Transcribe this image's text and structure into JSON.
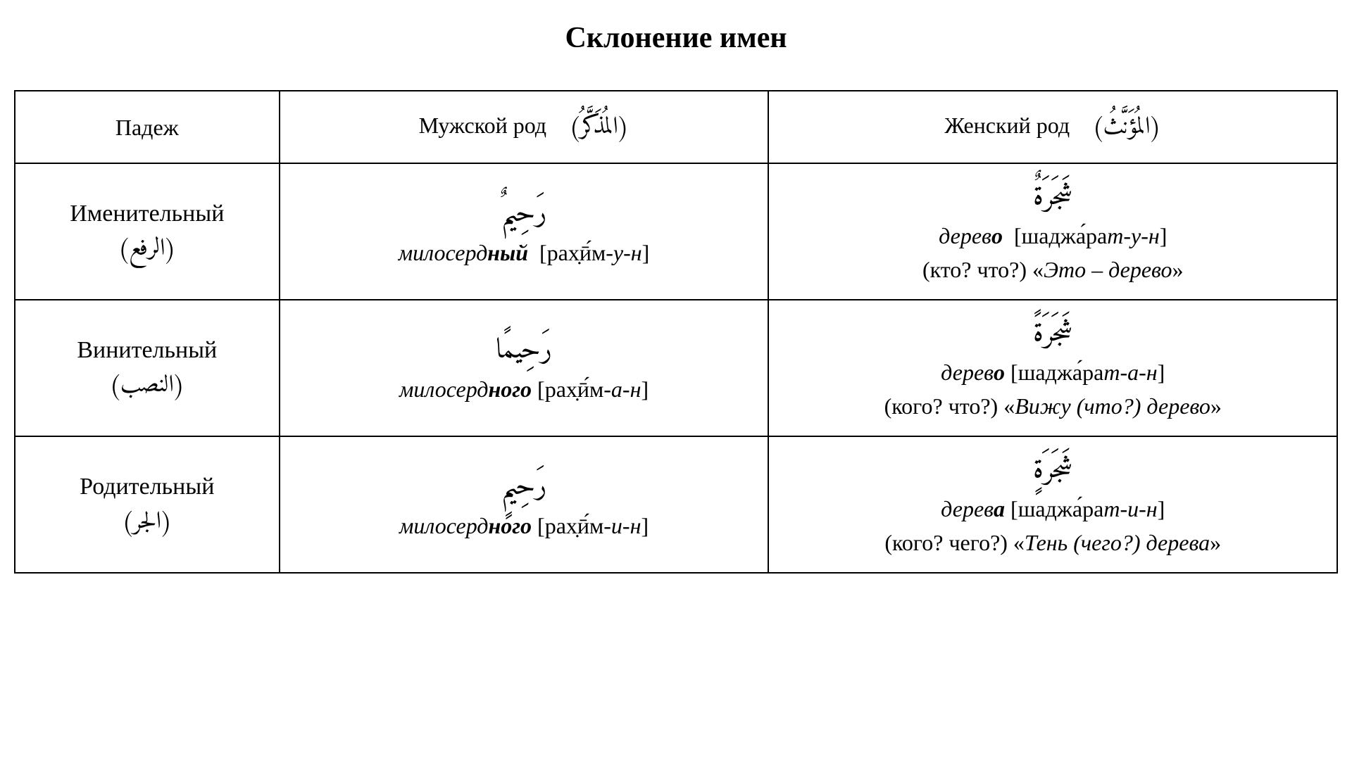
{
  "title": "Склонение имен",
  "table": {
    "border_color": "#000000",
    "background_color": "#ffffff",
    "text_color": "#000000",
    "title_fontsize": 42,
    "cell_fontsize": 32,
    "arabic_word_fontsize": 40,
    "columns": [
      {
        "key": "case",
        "label_ru": "Падеж",
        "width_pct": 20
      },
      {
        "key": "masc",
        "label_ru": "Мужской род",
        "label_ar": "(المُذَكَّرُ)",
        "width_pct": 37
      },
      {
        "key": "fem",
        "label_ru": "Женский род",
        "label_ar": "(المُؤَنَّثُ)",
        "width_pct": 43
      }
    ],
    "rows": [
      {
        "case": {
          "ru": "Именительный",
          "ar": "(الرفع)"
        },
        "masc": {
          "arabic": "رَحِيمٌ",
          "trans_prefix": "милосерд",
          "trans_bold": "ный",
          "translit_prefix": "рах̣ӣ́м",
          "translit_suffix": "-у-н"
        },
        "fem": {
          "arabic": "شَجَرَةٌ",
          "trans_prefix": "дерев",
          "trans_bold": "о",
          "translit_prefix": "шаджа́ра",
          "translit_suffix": "т-у-н",
          "question": "(кто? что?)",
          "example_pre": "«",
          "example_italic1": "Это – дерево",
          "example_mid": "",
          "example_italic2": "",
          "example_post": "»"
        }
      },
      {
        "case": {
          "ru": "Винительный",
          "ar": "(النصب)"
        },
        "masc": {
          "arabic": "رَحِيمًا",
          "trans_prefix": "милосерд",
          "trans_bold": "ного",
          "translit_prefix": "рах̣ӣ́м",
          "translit_suffix": "-а-н"
        },
        "fem": {
          "arabic": "شَجَرَةً",
          "trans_prefix": "дерев",
          "trans_bold": "о",
          "translit_prefix": "шаджа́ра",
          "translit_suffix": "т-а-н",
          "question": "(кого? что?)",
          "example_pre": "«",
          "example_italic1": "Вижу (что?) дерево",
          "example_mid": "",
          "example_italic2": "",
          "example_post": "»"
        }
      },
      {
        "case": {
          "ru": "Родительный",
          "ar": "(الجر)"
        },
        "masc": {
          "arabic": "رَحِيمٍ",
          "trans_prefix": "милосерд",
          "trans_bold": "ного",
          "translit_prefix": "рах̣ӣ́м",
          "translit_suffix": "-и-н"
        },
        "fem": {
          "arabic": "شَجَرَةٍ",
          "trans_prefix": "дерев",
          "trans_bold": "а",
          "translit_prefix": "шаджа́ра",
          "translit_suffix": "т-и-н",
          "question": "(кого? чего?)",
          "example_pre": "«",
          "example_italic1": "Тень (чего?) дерева",
          "example_mid": "",
          "example_italic2": "",
          "example_post": "»"
        }
      }
    ]
  }
}
